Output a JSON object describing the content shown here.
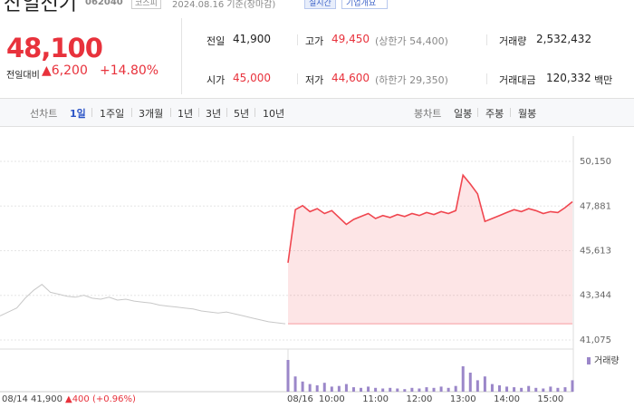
{
  "header": {
    "name": "산일전기",
    "code": "062040",
    "market": "코스피",
    "date": "2024.08.16 기준(장마감)",
    "realtime": "실시간",
    "company_info": "기업개요"
  },
  "quote": {
    "price": "48,100",
    "change_label": "전일대비",
    "change": "▲6,200",
    "change_rate": "+14.80%"
  },
  "stats": [
    {
      "label": "전일",
      "value": "41,900"
    },
    {
      "label": "고가",
      "value": "49,450",
      "note": "(상한가 54,400)"
    },
    {
      "label": "거래량",
      "value": "2,532,432"
    },
    {
      "label": "시가",
      "value": "45,000"
    },
    {
      "label": "저가",
      "value": "44,600",
      "note": "(하한가 29,350)"
    },
    {
      "label": "거래대금",
      "value": "120,332",
      "unit": "백만"
    }
  ],
  "tabs": {
    "line_label": "선차트",
    "periods": [
      "1일",
      "1주일",
      "3개월",
      "1년",
      "3년",
      "5년",
      "10년"
    ],
    "candle_label": "봉차트",
    "candles": [
      "일봉",
      "주봉",
      "월봉"
    ]
  },
  "chart_data": [
    {
      "type": "line",
      "categories": [
        "08/14",
        null,
        null,
        null,
        null,
        null,
        null,
        null,
        null,
        null,
        null,
        null,
        null,
        null,
        null,
        null,
        null,
        null,
        null,
        null,
        null,
        null,
        null,
        null,
        null,
        null,
        null,
        null,
        null,
        null,
        null,
        null,
        null,
        null,
        null,
        "08/16",
        null,
        null,
        null,
        null,
        null,
        "10:00",
        null,
        null,
        null,
        null,
        null,
        "11:00",
        null,
        null,
        null,
        null,
        null,
        "12:00",
        null,
        null,
        null,
        null,
        null,
        "13:00",
        null,
        null,
        null,
        null,
        null,
        "14:00",
        null,
        null,
        null,
        null,
        null,
        "15:00",
        null,
        null,
        null
      ],
      "series": [
        {
          "color": "#c8c8c8",
          "values": [
            42300,
            42500,
            42700,
            43200,
            43600,
            43900,
            43500,
            43400,
            43300,
            43250,
            43350,
            43200,
            43150,
            43250,
            43100,
            43150,
            43050,
            43000,
            42950,
            42850,
            42800,
            42750,
            42700,
            42650,
            42550,
            42500,
            42450,
            42500,
            42400,
            42300,
            42200,
            42100,
            42000,
            41950,
            41900,
            null,
            null,
            null,
            null,
            null,
            null,
            null,
            null,
            null,
            null,
            null,
            null,
            null,
            null,
            null,
            null,
            null,
            null,
            null,
            null,
            null,
            null,
            null,
            null,
            null,
            null,
            null,
            null,
            null,
            null,
            null,
            null,
            null,
            null,
            null,
            null,
            null,
            null,
            null,
            null
          ]
        },
        {
          "color": "#f0464f",
          "area": true,
          "values": [
            null,
            null,
            null,
            null,
            null,
            null,
            null,
            null,
            null,
            null,
            null,
            null,
            null,
            null,
            null,
            null,
            null,
            null,
            null,
            null,
            null,
            null,
            null,
            null,
            null,
            null,
            null,
            null,
            null,
            null,
            null,
            null,
            null,
            null,
            null,
            45000,
            47700,
            47900,
            47600,
            47750,
            47500,
            47650,
            47300,
            46950,
            47200,
            47350,
            47500,
            47250,
            47400,
            47300,
            47450,
            47350,
            47500,
            47400,
            47550,
            47450,
            47600,
            47500,
            47650,
            49450,
            49000,
            48500,
            47100,
            47250,
            47400,
            47550,
            47700,
            47600,
            47750,
            47650,
            47500,
            47600,
            47550,
            47800,
            48100
          ]
        }
      ],
      "baseline": 41900,
      "ylim": [
        41075,
        50150
      ],
      "yticks": [
        {
          "value": 41075,
          "label": "41,075"
        },
        {
          "value": 43344,
          "label": "43,344"
        },
        {
          "value": 45613,
          "label": "45,613"
        },
        {
          "value": 47881,
          "label": "47,881"
        },
        {
          "value": 50150,
          "label": "50,150"
        }
      ],
      "grid": true,
      "annotations": {
        "prev_close": "41,900",
        "prev_change": "▲400 (+0.96%)"
      }
    },
    {
      "type": "bar",
      "series": [
        {
          "name": "거래량",
          "color": "#9b87c9",
          "values": [
            null,
            null,
            null,
            null,
            null,
            null,
            null,
            null,
            null,
            null,
            null,
            null,
            null,
            null,
            null,
            null,
            null,
            null,
            null,
            null,
            null,
            null,
            null,
            null,
            null,
            null,
            null,
            null,
            null,
            null,
            null,
            null,
            null,
            null,
            null,
            250000,
            120000,
            80000,
            60000,
            50000,
            70000,
            40000,
            45000,
            60000,
            35000,
            30000,
            40000,
            30000,
            25000,
            30000,
            25000,
            20000,
            30000,
            25000,
            35000,
            30000,
            40000,
            30000,
            45000,
            200000,
            150000,
            90000,
            120000,
            60000,
            50000,
            40000,
            35000,
            30000,
            45000,
            30000,
            25000,
            40000,
            30000,
            35000,
            90000
          ]
        }
      ],
      "ylim": [
        0,
        300000
      ]
    }
  ]
}
